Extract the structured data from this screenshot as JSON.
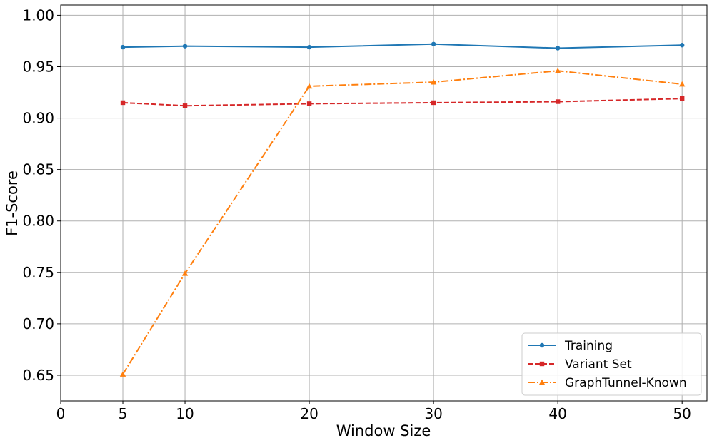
{
  "chart_data": {
    "type": "line",
    "title": "",
    "xlabel": "Window Size",
    "ylabel": "F1-Score",
    "x": [
      5,
      10,
      20,
      30,
      40,
      50
    ],
    "xticks": [
      "0",
      "5",
      "10",
      "20",
      "30",
      "40",
      "50"
    ],
    "yticks": [
      "0.65",
      "0.70",
      "0.75",
      "0.80",
      "0.85",
      "0.90",
      "0.95",
      "1.00"
    ],
    "xlim": [
      0,
      52
    ],
    "ylim": [
      0.625,
      1.01
    ],
    "grid": true,
    "legend_position": "lower-right",
    "series": [
      {
        "name": "Training",
        "color": "#1f77b4",
        "marker": "circle",
        "linestyle": "solid",
        "values": [
          0.969,
          0.97,
          0.969,
          0.972,
          0.968,
          0.971
        ]
      },
      {
        "name": "Variant Set",
        "color": "#d62728",
        "marker": "square",
        "linestyle": "dashed",
        "values": [
          0.915,
          0.912,
          0.914,
          0.915,
          0.916,
          0.919
        ]
      },
      {
        "name": "GraphTunnel-Known",
        "color": "#ff7f0e",
        "marker": "triangle",
        "linestyle": "dashdot",
        "values": [
          0.651,
          0.749,
          0.931,
          0.935,
          0.946,
          0.933
        ]
      }
    ]
  }
}
